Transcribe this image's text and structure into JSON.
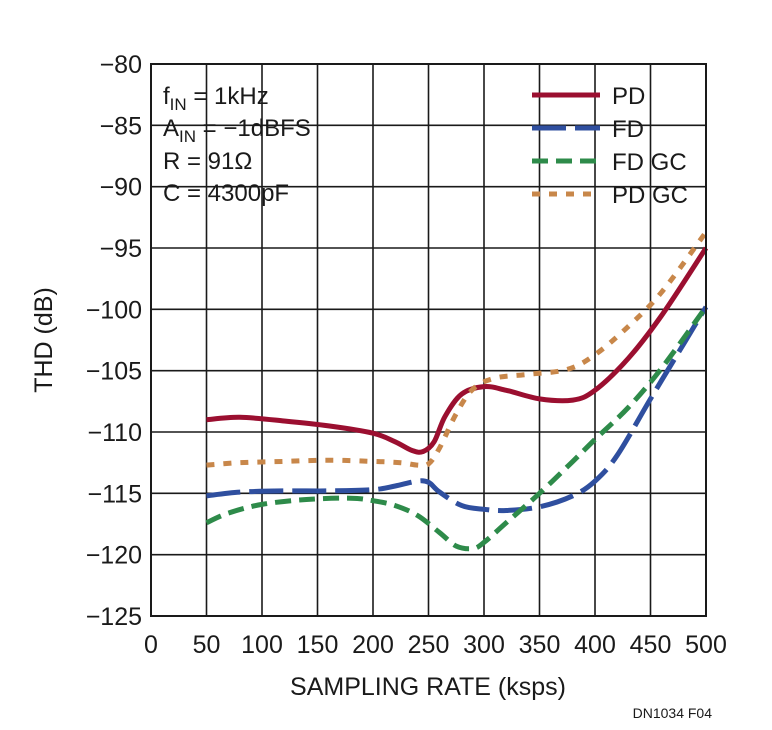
{
  "chart_data": {
    "type": "line",
    "xlabel": "SAMPLING RATE (ksps)",
    "ylabel": "THD (dB)",
    "xlim": [
      0,
      500
    ],
    "ylim": [
      -125,
      -80
    ],
    "x_ticks": [
      0,
      50,
      100,
      150,
      200,
      250,
      300,
      350,
      400,
      450,
      500
    ],
    "y_ticks": [
      -80,
      -85,
      -90,
      -95,
      -100,
      -105,
      -110,
      -115,
      -120,
      -125
    ],
    "x_tick_labels": [
      "0",
      "50",
      "100",
      "150",
      "200",
      "250",
      "300",
      "350",
      "400",
      "450",
      "500"
    ],
    "y_tick_labels": [
      "−80",
      "−85",
      "−90",
      "−95",
      "−100",
      "−105",
      "−110",
      "−115",
      "−120",
      "−125"
    ],
    "grid": true,
    "legend_position": "top-right",
    "annotations": {
      "fin_main": "f",
      "fin_sub": "IN",
      "fin_rest": " = 1kHz",
      "ain_main": "A",
      "ain_sub": "IN",
      "ain_rest": " = −1dBFS",
      "r_line": "R = 91Ω",
      "c_line": "C = 4300pF"
    },
    "series": [
      {
        "name": "PD",
        "color": "#9b0f30",
        "dash": "solid",
        "x": [
          50,
          80,
          120,
          160,
          200,
          220,
          235,
          245,
          255,
          265,
          280,
          300,
          320,
          350,
          380,
          400,
          430,
          460,
          500
        ],
        "y": [
          -109.0,
          -108.8,
          -109.1,
          -109.5,
          -110.1,
          -110.8,
          -111.5,
          -111.6,
          -110.8,
          -108.7,
          -106.9,
          -106.3,
          -106.6,
          -107.3,
          -107.4,
          -106.6,
          -104.0,
          -100.5,
          -95.0
        ]
      },
      {
        "name": "FD",
        "color": "#2f4f9f",
        "dash": "long-dash",
        "x": [
          50,
          80,
          120,
          160,
          200,
          220,
          240,
          250,
          260,
          280,
          300,
          320,
          350,
          380,
          400,
          420,
          450,
          480,
          500
        ],
        "y": [
          -115.2,
          -114.9,
          -114.8,
          -114.8,
          -114.7,
          -114.4,
          -114.0,
          -114.1,
          -114.9,
          -116.0,
          -116.3,
          -116.4,
          -116.1,
          -115.2,
          -114.0,
          -111.9,
          -107.3,
          -102.8,
          -99.8
        ]
      },
      {
        "name": "FD GC",
        "color": "#2e8b4a",
        "dash": "dash",
        "x": [
          50,
          70,
          100,
          140,
          180,
          200,
          220,
          240,
          260,
          275,
          290,
          300,
          320,
          350,
          380,
          400,
          430,
          460,
          500
        ],
        "y": [
          -117.4,
          -116.6,
          -115.9,
          -115.5,
          -115.4,
          -115.6,
          -116.0,
          -116.8,
          -118.2,
          -119.3,
          -119.5,
          -119.0,
          -117.4,
          -115.0,
          -112.4,
          -110.6,
          -108.0,
          -104.8,
          -99.8
        ]
      },
      {
        "name": "PD GC",
        "color": "#c8874a",
        "dash": "dot",
        "x": [
          50,
          80,
          120,
          160,
          200,
          225,
          240,
          250,
          260,
          275,
          290,
          310,
          340,
          375,
          400,
          430,
          460,
          500
        ],
        "y": [
          -112.7,
          -112.5,
          -112.4,
          -112.3,
          -112.4,
          -112.5,
          -112.7,
          -112.6,
          -111.3,
          -108.5,
          -106.5,
          -105.6,
          -105.3,
          -104.9,
          -103.7,
          -101.4,
          -98.6,
          -93.7
        ]
      }
    ],
    "figure_id": "DN1034 F04"
  }
}
